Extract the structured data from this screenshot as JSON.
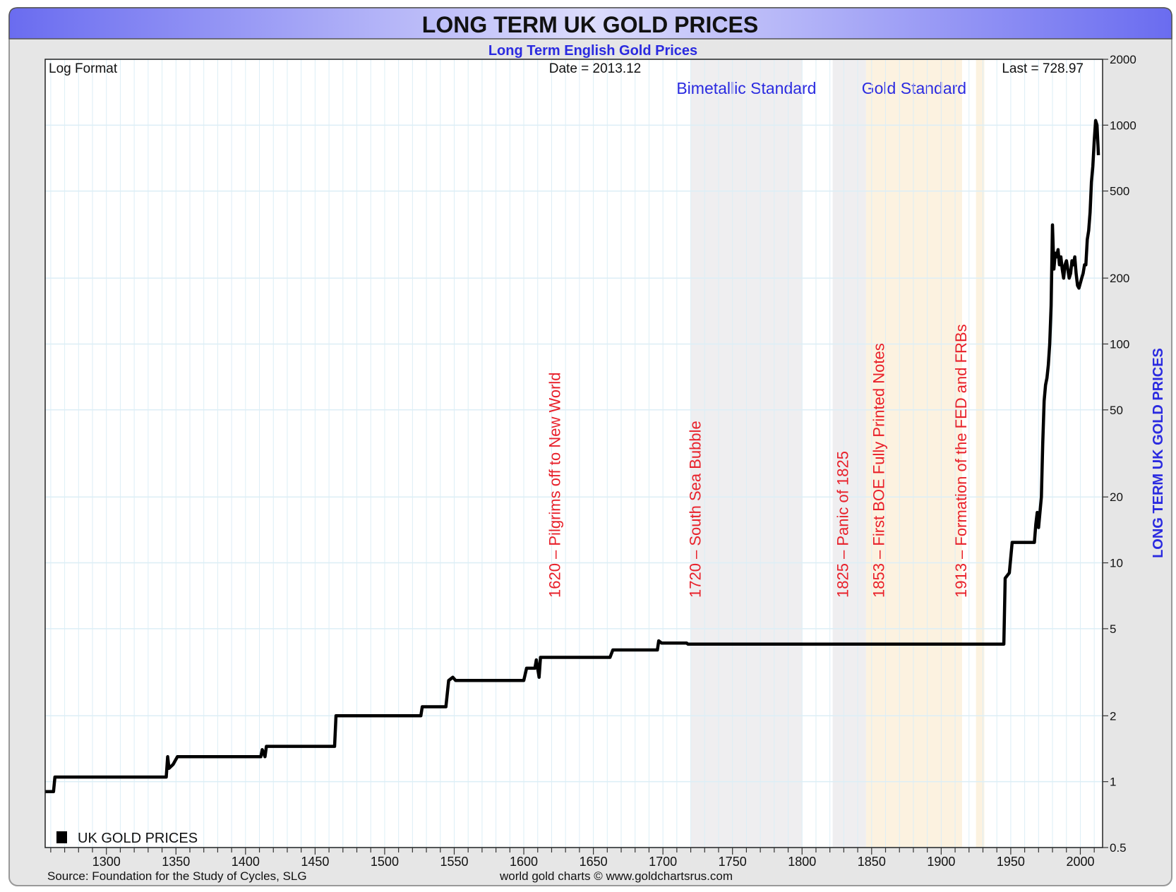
{
  "chart_data": {
    "type": "line",
    "title": "LONG TERM UK GOLD PRICES",
    "subtitle": "Long Term English Gold Prices",
    "scale_note": "Log Format",
    "date_label": "Date = 2013.12",
    "last_label": "Last = 728.97",
    "ylabel": "LONG TERM UK GOLD PRICES",
    "xlabel": "",
    "y_scale": "log",
    "xlim": [
      1256,
      2016
    ],
    "ylim": [
      0.5,
      2000
    ],
    "x_ticks": [
      "1300",
      "1350",
      "1400",
      "1450",
      "1500",
      "1550",
      "1600",
      "1650",
      "1700",
      "1750",
      "1800",
      "1850",
      "1900",
      "1950",
      "2000"
    ],
    "y_ticks": [
      "0.5",
      "1",
      "2",
      "5",
      "10",
      "20",
      "50",
      "100",
      "200",
      "500",
      "1000",
      "2000"
    ],
    "grid": true,
    "legend": {
      "position": "bottom-left",
      "entries": [
        {
          "name": "UK GOLD PRICES",
          "color": "#000000"
        }
      ]
    },
    "source": "Source: Foundation for the Study of Cycles, SLG",
    "credit": "world gold charts © www.goldchartsrus.com",
    "bands": [
      {
        "from": 1720,
        "to": 1800,
        "color": "#efeef0",
        "label": "Bimetallic Standard"
      },
      {
        "from": 1822,
        "to": 1846,
        "color": "#efeef0",
        "label": ""
      },
      {
        "from": 1846,
        "to": 1915,
        "color": "#fcf2e0",
        "label": "Gold Standard"
      },
      {
        "from": 1925,
        "to": 1931,
        "color": "#fcf2e0",
        "label": ""
      }
    ],
    "annotations": [
      {
        "year": 1622,
        "text": "1620 – Pilgrims off to New World"
      },
      {
        "year": 1723,
        "text": "1720 – South Sea Bubble"
      },
      {
        "year": 1829,
        "text": "1825 – Panic of 1825"
      },
      {
        "year": 1855,
        "text": "1853 – First BOE Fully Printed Notes"
      },
      {
        "year": 1914,
        "text": "1913 – Formation of the FED and FRBs"
      }
    ],
    "series": [
      {
        "name": "UK GOLD PRICES",
        "color": "#000000",
        "x": [
          1256,
          1262,
          1263,
          1343,
          1344,
          1345,
          1348,
          1351,
          1411,
          1412,
          1414,
          1415,
          1464,
          1465,
          1526,
          1527,
          1544,
          1546,
          1549,
          1551,
          1600,
          1602,
          1608,
          1609,
          1611,
          1612,
          1662,
          1664,
          1696,
          1697,
          1699,
          1717,
          1718,
          1945,
          1946,
          1949,
          1951,
          1967,
          1968,
          1969,
          1970,
          1972,
          1973,
          1974,
          1975,
          1976,
          1977,
          1978,
          1979,
          1980,
          1981,
          1982,
          1983,
          1984,
          1985,
          1986,
          1987,
          1988,
          1989,
          1990,
          1991,
          1992,
          1993,
          1994,
          1995,
          1996,
          1997,
          1998,
          1999,
          2000,
          2001,
          2002,
          2003,
          2004,
          2005,
          2006,
          2007,
          2008,
          2009,
          2010,
          2011,
          2012,
          2013
        ],
        "y": [
          0.9,
          0.9,
          1.05,
          1.05,
          1.3,
          1.15,
          1.2,
          1.3,
          1.3,
          1.4,
          1.3,
          1.45,
          1.45,
          2.0,
          2.0,
          2.2,
          2.2,
          2.9,
          3.0,
          2.9,
          2.9,
          3.3,
          3.3,
          3.6,
          3.0,
          3.7,
          3.7,
          4.0,
          4.0,
          4.4,
          4.3,
          4.3,
          4.25,
          4.25,
          8.5,
          9,
          12.4,
          12.4,
          15,
          17,
          14.5,
          20,
          35,
          55,
          65,
          70,
          80,
          100,
          150,
          350,
          220,
          260,
          250,
          270,
          230,
          250,
          220,
          200,
          230,
          240,
          220,
          200,
          210,
          240,
          230,
          250,
          210,
          185,
          180,
          190,
          200,
          210,
          230,
          230,
          300,
          330,
          400,
          550,
          650,
          850,
          1050,
          1000,
          729
        ]
      }
    ]
  }
}
